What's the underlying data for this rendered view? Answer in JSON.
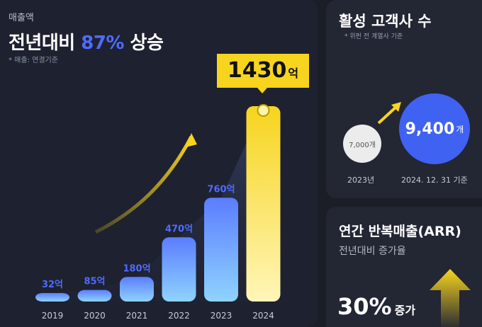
{
  "header": {
    "label": "매출액",
    "headline_prefix": "전년대비",
    "headline_accent": "87%",
    "headline_suffix": "상승",
    "note": "* 매출: 연결기준"
  },
  "callout": {
    "value": "1430",
    "unit": "억"
  },
  "chart_data": {
    "type": "bar",
    "categories": [
      "2019",
      "2020",
      "2021",
      "2022",
      "2023",
      "2024"
    ],
    "values": [
      32,
      85,
      180,
      470,
      760,
      1430
    ],
    "data_labels": [
      "32억",
      "85억",
      "180억",
      "470억",
      "760억",
      ""
    ],
    "unit": "억",
    "highlight_category": "2024",
    "colors": {
      "bar": "#4f7cff",
      "bar_highlight": "#f7d41e",
      "label": "#4f6bff"
    }
  },
  "customers": {
    "title": "활성 고객사 수",
    "note": "* 위펀 전 계열사 기준",
    "prev_value": "7,000개",
    "curr_value": "9,400",
    "curr_unit": "개",
    "prev_caption": "2023년",
    "curr_caption": "2024. 12. 31 기준"
  },
  "arr": {
    "title": "연간 반복매출(ARR)",
    "subtitle": "전년대비 증가율",
    "value": "30%",
    "unit": "증가"
  },
  "colors": {
    "accent_blue": "#4f6bff",
    "accent_yellow": "#f7d41e",
    "background": "#1b1d27"
  }
}
